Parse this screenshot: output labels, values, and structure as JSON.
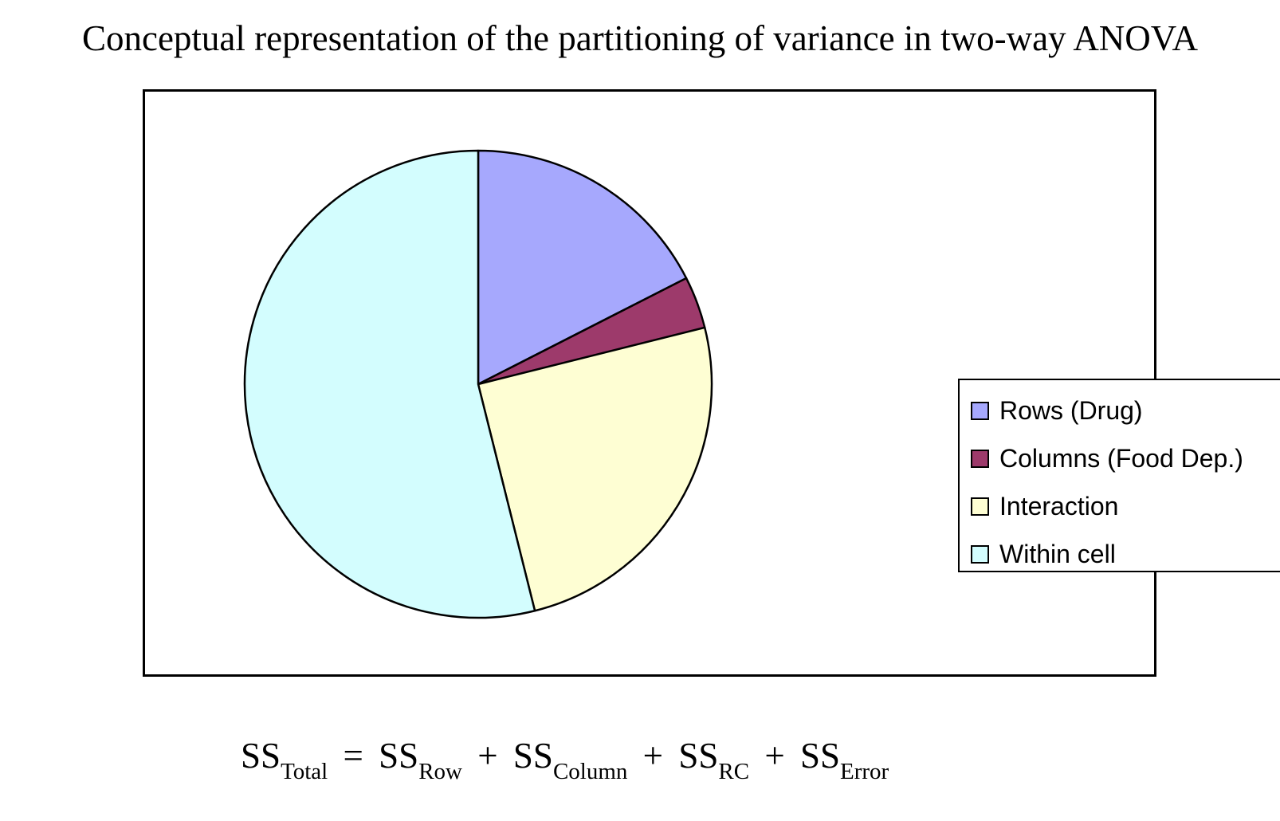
{
  "chart_data": {
    "type": "pie",
    "title": "Conceptual representation of the partitioning of variance in two-way ANOVA",
    "slices": [
      {
        "label": "Rows (Drug)",
        "value": 17.5,
        "color": "#a6a8fd"
      },
      {
        "label": "Columns (Food Dep.)",
        "value": 3.6,
        "color": "#9d3a6b"
      },
      {
        "label": "Interaction",
        "value": 25.0,
        "color": "#fefed3"
      },
      {
        "label": "Within cell",
        "value": 53.9,
        "color": "#d3fdfe"
      }
    ],
    "start_angle_deg": 0,
    "direction": "clockwise",
    "legend_position": "right"
  },
  "formula": {
    "ss1": "SS",
    "sub1": "Total",
    "eq": "=",
    "ss2": "SS",
    "sub2": "Row",
    "plus1": "+",
    "ss3": "SS",
    "sub3": "Column",
    "plus2": "+",
    "ss4": "SS",
    "sub4": "RC",
    "plus3": "+",
    "ss5": "SS",
    "sub5": "Error"
  }
}
